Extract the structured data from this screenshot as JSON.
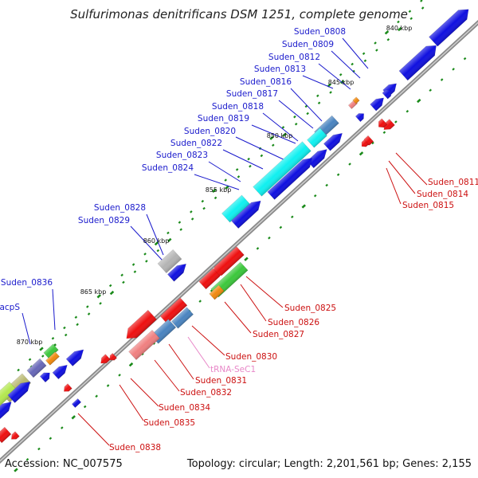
{
  "title": "Sulfurimonas denitrificans DSM 1251, complete genome",
  "footer": {
    "accession": "Accession: NC_007575",
    "summary": "Topology: circular; Length: 2,201,561 bp; Genes: 2,155"
  },
  "kbp_labels": [
    "840 kbp",
    "845 kbp",
    "850 kbp",
    "855 kbp",
    "860 kbp",
    "865 kbp",
    "870 kbp"
  ],
  "colors": {
    "forward_label": "#1a1acc",
    "reverse_label": "#cc1111",
    "rna_label": "#e888c8",
    "blue": "#1010e0",
    "cyan": "#10f0f0",
    "steelblue": "#4a84c0",
    "red": "#ee1010",
    "pink": "#f08080",
    "green": "#3cc83c",
    "orange": "#f08a10",
    "gray": "#b4b4b4",
    "olive": "#b8b870",
    "lime": "#b4e850",
    "purple": "#6868b8",
    "backbone": "#9a9a9a",
    "tick": "#1a8a1a"
  },
  "forward_genes": [
    "Suden_0808",
    "Suden_0809",
    "Suden_0812",
    "Suden_0813",
    "Suden_0816",
    "Suden_0817",
    "Suden_0818",
    "Suden_0819",
    "Suden_0820",
    "Suden_0822",
    "Suden_0823",
    "Suden_0824",
    "Suden_0828",
    "Suden_0829",
    "Suden_0836",
    "acpS"
  ],
  "reverse_genes": [
    "Suden_0811",
    "Suden_0814",
    "Suden_0815",
    "Suden_0825",
    "Suden_0826",
    "Suden_0827",
    "Suden_0830",
    "tRNA-SeC1",
    "Suden_0831",
    "Suden_0832",
    "Suden_0834",
    "Suden_0835",
    "Suden_0838"
  ]
}
